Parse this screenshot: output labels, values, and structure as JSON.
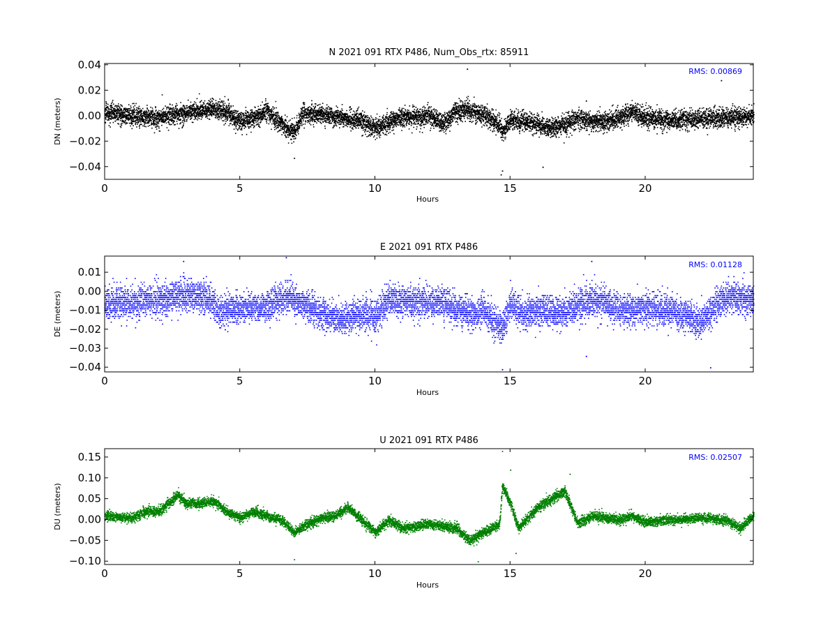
{
  "chart_data": [
    {
      "type": "scatter",
      "component": "N",
      "title": "N 2021 091 RTX  P486, Num_Obs_rtx: 85911",
      "xlabel": "Hours",
      "ylabel": "DN (meters)",
      "xlim": [
        0,
        24
      ],
      "ylim": [
        -0.05,
        0.041
      ],
      "xticks": [
        0,
        5,
        10,
        15,
        20
      ],
      "yticks": [
        -0.04,
        -0.02,
        0.0,
        0.02,
        0.04
      ],
      "ytick_labels": [
        "−0.04",
        "−0.02",
        "0.00",
        "0.02",
        "0.04"
      ],
      "color": "#000000",
      "rms_label": "RMS:  0.00869",
      "rms_color": "#0000ff",
      "grid": false,
      "noise_amplitude": 0.0087,
      "trend": [
        [
          0,
          0.003
        ],
        [
          1,
          0.0
        ],
        [
          2,
          -0.001
        ],
        [
          3,
          0.003
        ],
        [
          4,
          0.006
        ],
        [
          4.5,
          0.003
        ],
        [
          5,
          -0.004
        ],
        [
          5.5,
          -0.002
        ],
        [
          6,
          0.004
        ],
        [
          6.5,
          -0.006
        ],
        [
          7,
          -0.013
        ],
        [
          7.3,
          0.002
        ],
        [
          8,
          0.001
        ],
        [
          9,
          -0.002
        ],
        [
          9.5,
          -0.004
        ],
        [
          10,
          -0.009
        ],
        [
          10.5,
          -0.005
        ],
        [
          11,
          -0.001
        ],
        [
          12,
          0.0
        ],
        [
          12.5,
          -0.006
        ],
        [
          13,
          0.004
        ],
        [
          13.5,
          0.005
        ],
        [
          14,
          0.001
        ],
        [
          14.6,
          -0.007
        ],
        [
          14.7,
          -0.014
        ],
        [
          15,
          -0.002
        ],
        [
          15.5,
          -0.004
        ],
        [
          16,
          -0.006
        ],
        [
          16.5,
          -0.01
        ],
        [
          17,
          -0.006
        ],
        [
          17.5,
          -0.002
        ],
        [
          18,
          -0.004
        ],
        [
          18.5,
          -0.004
        ],
        [
          19,
          -0.002
        ],
        [
          19.5,
          0.004
        ],
        [
          20,
          -0.002
        ],
        [
          21,
          -0.003
        ],
        [
          22,
          -0.002
        ],
        [
          23,
          -0.001
        ],
        [
          24,
          0.0
        ]
      ],
      "events": [
        [
          14.65,
          -0.046
        ],
        [
          14.7,
          -0.043
        ],
        [
          13.4,
          0.037
        ],
        [
          16.2,
          -0.04
        ],
        [
          22.8,
          0.028
        ],
        [
          7.0,
          -0.033
        ],
        [
          17.8,
          0.012
        ]
      ]
    },
    {
      "type": "scatter",
      "component": "E",
      "title": "E 2021 091 RTX  P486",
      "xlabel": "Hours",
      "ylabel": "DE (meters)",
      "xlim": [
        0,
        24
      ],
      "ylim": [
        -0.0425,
        0.0185
      ],
      "xticks": [
        0,
        5,
        10,
        15,
        20
      ],
      "yticks": [
        -0.04,
        -0.03,
        -0.02,
        -0.01,
        0.0,
        0.01
      ],
      "ytick_labels": [
        "−0.04",
        "−0.03",
        "−0.02",
        "−0.01",
        "0.00",
        "0.01"
      ],
      "color": "#0000ff",
      "rms_label": "RMS:  0.01128",
      "rms_color": "#0000ff",
      "grid": false,
      "noise_amplitude": 0.0095,
      "quantize": 0.001,
      "trend": [
        [
          0,
          -0.006
        ],
        [
          1,
          -0.006
        ],
        [
          2,
          -0.004
        ],
        [
          3,
          -0.002
        ],
        [
          3.8,
          -0.004
        ],
        [
          4.2,
          -0.01
        ],
        [
          5,
          -0.009
        ],
        [
          6,
          -0.008
        ],
        [
          6.8,
          -0.002
        ],
        [
          7.5,
          -0.008
        ],
        [
          8.5,
          -0.015
        ],
        [
          9.5,
          -0.012
        ],
        [
          10,
          -0.013
        ],
        [
          10.5,
          -0.004
        ],
        [
          11,
          -0.005
        ],
        [
          12,
          -0.006
        ],
        [
          12.5,
          -0.006
        ],
        [
          13,
          -0.009
        ],
        [
          13.5,
          -0.012
        ],
        [
          14,
          -0.01
        ],
        [
          14.7,
          -0.02
        ],
        [
          15,
          -0.006
        ],
        [
          15.5,
          -0.012
        ],
        [
          16,
          -0.01
        ],
        [
          17,
          -0.011
        ],
        [
          18,
          -0.004
        ],
        [
          18.5,
          -0.006
        ],
        [
          19,
          -0.01
        ],
        [
          20,
          -0.009
        ],
        [
          21,
          -0.01
        ],
        [
          22,
          -0.016
        ],
        [
          22.5,
          -0.009
        ],
        [
          23,
          -0.003
        ],
        [
          24,
          -0.004
        ]
      ],
      "events": [
        [
          14.7,
          -0.041
        ],
        [
          22.4,
          -0.04
        ],
        [
          6.7,
          0.018
        ],
        [
          18.0,
          0.016
        ],
        [
          17.8,
          -0.034
        ],
        [
          2.9,
          0.016
        ]
      ]
    },
    {
      "type": "scatter",
      "component": "U",
      "title": "U 2021 091 RTX  P486",
      "xlabel": "Hours",
      "ylabel": "DU (meters)",
      "xlim": [
        0,
        24
      ],
      "ylim": [
        -0.108,
        0.17
      ],
      "xticks": [
        0,
        5,
        10,
        15,
        20
      ],
      "yticks": [
        -0.1,
        -0.05,
        0.0,
        0.05,
        0.1,
        0.15
      ],
      "ytick_labels": [
        "−0.10",
        "−0.05",
        "0.00",
        "0.05",
        "0.10",
        "0.15"
      ],
      "color": "#008000",
      "rms_label": "RMS:  0.02507",
      "rms_color": "#0000ff",
      "grid": false,
      "noise_amplitude": 0.014,
      "trend": [
        [
          0,
          0.01
        ],
        [
          1,
          0.005
        ],
        [
          1.5,
          0.02
        ],
        [
          2,
          0.02
        ],
        [
          2.7,
          0.06
        ],
        [
          3,
          0.04
        ],
        [
          3.5,
          0.04
        ],
        [
          4,
          0.045
        ],
        [
          4.5,
          0.02
        ],
        [
          5,
          0.005
        ],
        [
          5.5,
          0.02
        ],
        [
          6,
          0.01
        ],
        [
          6.5,
          0.0
        ],
        [
          7,
          -0.03
        ],
        [
          7.5,
          -0.01
        ],
        [
          8,
          0.005
        ],
        [
          8.5,
          0.01
        ],
        [
          9,
          0.03
        ],
        [
          9.5,
          0.0
        ],
        [
          10,
          -0.03
        ],
        [
          10.5,
          0.0
        ],
        [
          11,
          -0.02
        ],
        [
          12,
          -0.01
        ],
        [
          13,
          -0.02
        ],
        [
          13.5,
          -0.05
        ],
        [
          14,
          -0.03
        ],
        [
          14.6,
          -0.01
        ],
        [
          14.7,
          0.08
        ],
        [
          15,
          0.04
        ],
        [
          15.3,
          -0.02
        ],
        [
          16,
          0.03
        ],
        [
          16.5,
          0.05
        ],
        [
          17,
          0.07
        ],
        [
          17.5,
          -0.01
        ],
        [
          18,
          0.01
        ],
        [
          19,
          0.0
        ],
        [
          19.5,
          0.01
        ],
        [
          20,
          -0.005
        ],
        [
          21,
          0.0
        ],
        [
          22,
          0.005
        ],
        [
          23,
          0.0
        ],
        [
          23.5,
          -0.02
        ],
        [
          24,
          0.01
        ]
      ],
      "events": [
        [
          14.7,
          0.165
        ],
        [
          15.0,
          0.12
        ],
        [
          17.2,
          0.11
        ],
        [
          15.2,
          -0.08
        ],
        [
          13.8,
          -0.1
        ],
        [
          7.0,
          -0.095
        ]
      ]
    }
  ]
}
